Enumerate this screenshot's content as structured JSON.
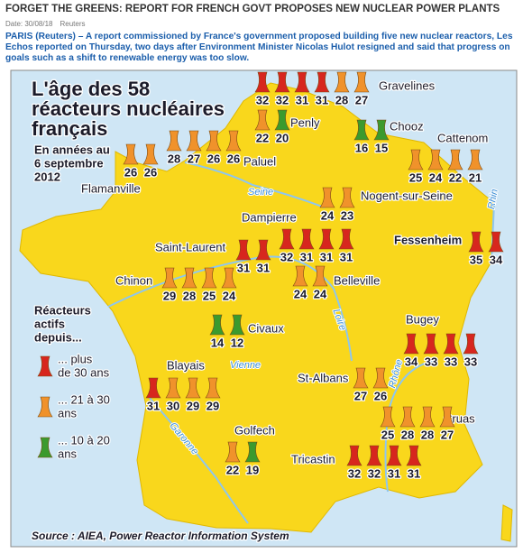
{
  "header": {
    "title": "FORGET THE GREENS: REPORT FOR FRENCH GOVT PROPOSES NEW NUCLEAR POWER PLANTS",
    "date": "Date: 30/08/18",
    "source": "Reuters",
    "lead": "PARIS (Reuters) – A report commissioned by France's government proposed building five new nuclear reactors, Les Echos reported on Thursday, two days after Environment Minister Nicolas Hulot resigned and said that progress on goals such as a shift to renewable energy was too slow."
  },
  "map": {
    "title_lines": [
      "L'âge des 58",
      "réacteurs nucléaires",
      "français"
    ],
    "subtitle_lines": [
      "En années au",
      "6 septembre",
      "2012"
    ],
    "legend": {
      "heading_lines": [
        "Réacteurs",
        "actifs",
        "depuis..."
      ],
      "items": [
        {
          "lines": [
            "... plus",
            "de 30 ans"
          ],
          "color": "#d7261e"
        },
        {
          "lines": [
            "... 21 à 30",
            "ans"
          ],
          "color": "#f0922b"
        },
        {
          "lines": [
            "... 10 à 20",
            "ans"
          ],
          "color": "#3b9a2e"
        }
      ]
    },
    "rivers": [
      "Seine",
      "Loire",
      "Rhin",
      "Vienne",
      "Rhône",
      "Garonne"
    ],
    "sites": [
      {
        "name": "Gravelines",
        "reactors": [
          {
            "age": 32,
            "color": "#d7261e"
          },
          {
            "age": 32,
            "color": "#d7261e"
          },
          {
            "age": 31,
            "color": "#d7261e"
          },
          {
            "age": 31,
            "color": "#d7261e"
          },
          {
            "age": 28,
            "color": "#f0922b"
          },
          {
            "age": 27,
            "color": "#f0922b"
          }
        ]
      },
      {
        "name": "Penly",
        "reactors": [
          {
            "age": 22,
            "color": "#f0922b"
          },
          {
            "age": 20,
            "color": "#3b9a2e"
          }
        ]
      },
      {
        "name": "Chooz",
        "reactors": [
          {
            "age": 16,
            "color": "#3b9a2e"
          },
          {
            "age": 15,
            "color": "#3b9a2e"
          }
        ]
      },
      {
        "name": "Cattenom",
        "reactors": [
          {
            "age": 25,
            "color": "#f0922b"
          },
          {
            "age": 24,
            "color": "#f0922b"
          },
          {
            "age": 22,
            "color": "#f0922b"
          },
          {
            "age": 21,
            "color": "#f0922b"
          }
        ]
      },
      {
        "name": "Paluel",
        "reactors": [
          {
            "age": 28,
            "color": "#f0922b"
          },
          {
            "age": 27,
            "color": "#f0922b"
          },
          {
            "age": 26,
            "color": "#f0922b"
          },
          {
            "age": 26,
            "color": "#f0922b"
          }
        ]
      },
      {
        "name": "Flamanville",
        "reactors": [
          {
            "age": 26,
            "color": "#f0922b"
          },
          {
            "age": 26,
            "color": "#f0922b"
          }
        ]
      },
      {
        "name": "Nogent-sur-Seine",
        "reactors": [
          {
            "age": 24,
            "color": "#f0922b"
          },
          {
            "age": 23,
            "color": "#f0922b"
          }
        ]
      },
      {
        "name": "Dampierre",
        "reactors": [
          {
            "age": 32,
            "color": "#d7261e"
          },
          {
            "age": 31,
            "color": "#d7261e"
          },
          {
            "age": 31,
            "color": "#d7261e"
          },
          {
            "age": 31,
            "color": "#d7261e"
          }
        ]
      },
      {
        "name": "Fessenheim",
        "reactors": [
          {
            "age": 35,
            "color": "#d7261e"
          },
          {
            "age": 34,
            "color": "#d7261e"
          }
        ]
      },
      {
        "name": "Saint-Laurent",
        "reactors": [
          {
            "age": 31,
            "color": "#d7261e"
          },
          {
            "age": 31,
            "color": "#d7261e"
          }
        ]
      },
      {
        "name": "Chinon",
        "reactors": [
          {
            "age": 29,
            "color": "#f0922b"
          },
          {
            "age": 28,
            "color": "#f0922b"
          },
          {
            "age": 25,
            "color": "#f0922b"
          },
          {
            "age": 24,
            "color": "#f0922b"
          }
        ]
      },
      {
        "name": "Belleville",
        "reactors": [
          {
            "age": 24,
            "color": "#f0922b"
          },
          {
            "age": 24,
            "color": "#f0922b"
          }
        ]
      },
      {
        "name": "Civaux",
        "reactors": [
          {
            "age": 14,
            "color": "#3b9a2e"
          },
          {
            "age": 12,
            "color": "#3b9a2e"
          }
        ]
      },
      {
        "name": "Bugey",
        "reactors": [
          {
            "age": 34,
            "color": "#d7261e"
          },
          {
            "age": 33,
            "color": "#d7261e"
          },
          {
            "age": 33,
            "color": "#d7261e"
          },
          {
            "age": 33,
            "color": "#d7261e"
          }
        ]
      },
      {
        "name": "Blayais",
        "reactors": [
          {
            "age": 31,
            "color": "#d7261e"
          },
          {
            "age": 30,
            "color": "#f0922b"
          },
          {
            "age": 29,
            "color": "#f0922b"
          },
          {
            "age": 29,
            "color": "#f0922b"
          }
        ]
      },
      {
        "name": "St-Albans",
        "reactors": [
          {
            "age": 27,
            "color": "#f0922b"
          },
          {
            "age": 26,
            "color": "#f0922b"
          }
        ]
      },
      {
        "name": "Cruas",
        "reactors": [
          {
            "age": 25,
            "color": "#f0922b"
          },
          {
            "age": 28,
            "color": "#f0922b"
          },
          {
            "age": 28,
            "color": "#f0922b"
          },
          {
            "age": 27,
            "color": "#f0922b"
          }
        ]
      },
      {
        "name": "Golfech",
        "reactors": [
          {
            "age": 22,
            "color": "#f0922b"
          },
          {
            "age": 19,
            "color": "#3b9a2e"
          }
        ]
      },
      {
        "name": "Tricastin",
        "reactors": [
          {
            "age": 32,
            "color": "#d7261e"
          },
          {
            "age": 32,
            "color": "#d7261e"
          },
          {
            "age": 31,
            "color": "#d7261e"
          },
          {
            "age": 31,
            "color": "#d7261e"
          }
        ]
      }
    ],
    "source": "Source : AIEA, Power Reactor Information System"
  }
}
